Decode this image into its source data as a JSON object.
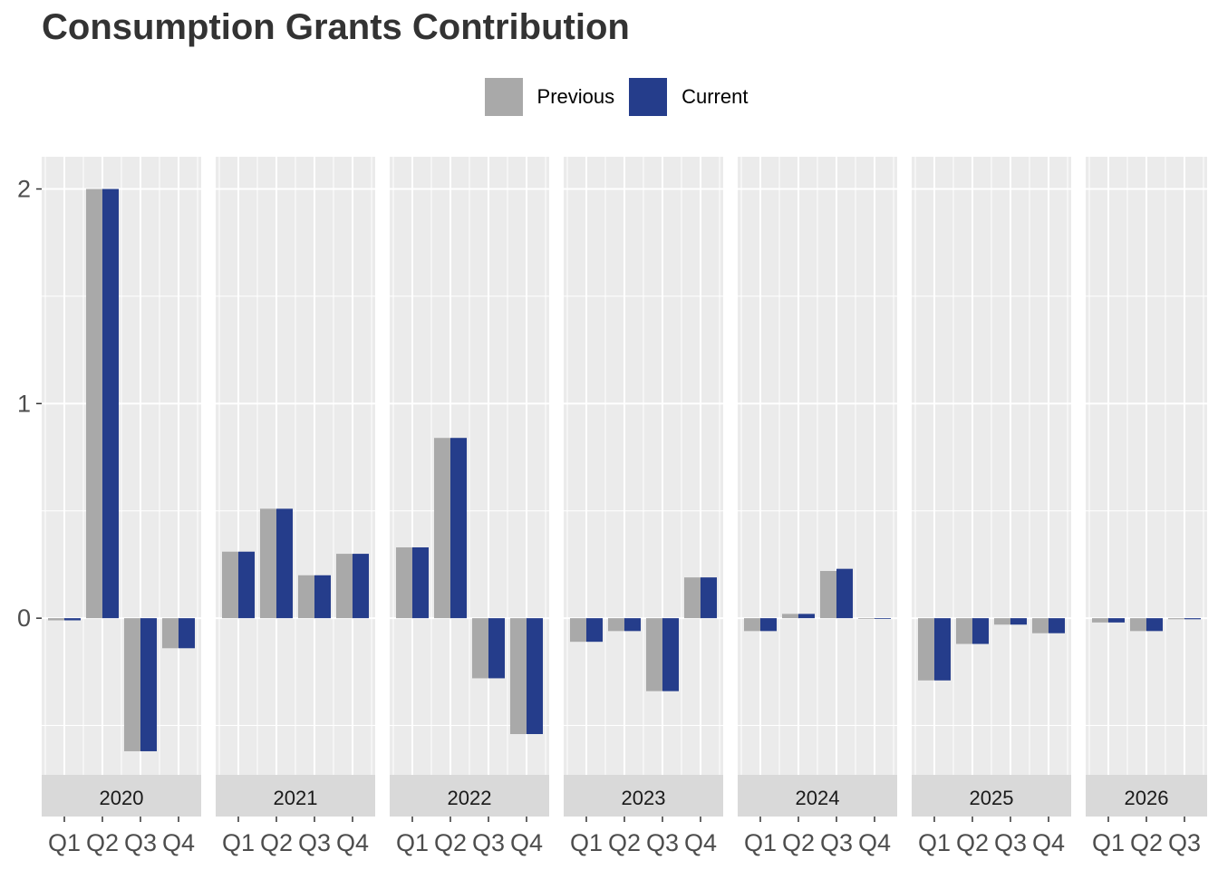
{
  "title": "Consumption Grants Contribution",
  "legend": [
    {
      "name": "Previous",
      "color": "#A9A9A9"
    },
    {
      "name": "Current",
      "color": "#253D8B"
    }
  ],
  "chart_data": {
    "type": "bar",
    "title": "Consumption Grants Contribution",
    "xlabel": "",
    "ylabel": "",
    "ylim": [
      -0.73,
      2.15
    ],
    "yticks": [
      0,
      1,
      2
    ],
    "grid": true,
    "legend_position": "top",
    "facets": [
      {
        "label": "2020",
        "categories": [
          "Q1",
          "Q2",
          "Q3",
          "Q4"
        ],
        "series": [
          {
            "name": "Previous",
            "values": [
              -0.01,
              2.0,
              -0.62,
              -0.14
            ]
          },
          {
            "name": "Current",
            "values": [
              -0.01,
              2.0,
              -0.62,
              -0.14
            ]
          }
        ]
      },
      {
        "label": "2021",
        "categories": [
          "Q1",
          "Q2",
          "Q3",
          "Q4"
        ],
        "series": [
          {
            "name": "Previous",
            "values": [
              0.31,
              0.51,
              0.2,
              0.3
            ]
          },
          {
            "name": "Current",
            "values": [
              0.31,
              0.51,
              0.2,
              0.3
            ]
          }
        ]
      },
      {
        "label": "2022",
        "categories": [
          "Q1",
          "Q2",
          "Q3",
          "Q4"
        ],
        "series": [
          {
            "name": "Previous",
            "values": [
              0.33,
              0.84,
              -0.28,
              -0.54
            ]
          },
          {
            "name": "Current",
            "values": [
              0.33,
              0.84,
              -0.28,
              -0.54
            ]
          }
        ]
      },
      {
        "label": "2023",
        "categories": [
          "Q1",
          "Q2",
          "Q3",
          "Q4"
        ],
        "series": [
          {
            "name": "Previous",
            "values": [
              -0.11,
              -0.06,
              -0.34,
              0.19
            ]
          },
          {
            "name": "Current",
            "values": [
              -0.11,
              -0.06,
              -0.34,
              0.19
            ]
          }
        ]
      },
      {
        "label": "2024",
        "categories": [
          "Q1",
          "Q2",
          "Q3",
          "Q4"
        ],
        "series": [
          {
            "name": "Previous",
            "values": [
              -0.06,
              0.02,
              0.22,
              0.0
            ]
          },
          {
            "name": "Current",
            "values": [
              -0.06,
              0.02,
              0.23,
              0.0
            ]
          }
        ]
      },
      {
        "label": "2025",
        "categories": [
          "Q1",
          "Q2",
          "Q3",
          "Q4"
        ],
        "series": [
          {
            "name": "Previous",
            "values": [
              -0.29,
              -0.12,
              -0.03,
              -0.07
            ]
          },
          {
            "name": "Current",
            "values": [
              -0.29,
              -0.12,
              -0.03,
              -0.07
            ]
          }
        ]
      },
      {
        "label": "2026",
        "categories": [
          "Q1",
          "Q2",
          "Q3"
        ],
        "series": [
          {
            "name": "Previous",
            "values": [
              -0.02,
              -0.06,
              -0.005
            ]
          },
          {
            "name": "Current",
            "values": [
              -0.02,
              -0.06,
              -0.005
            ]
          }
        ]
      }
    ]
  }
}
